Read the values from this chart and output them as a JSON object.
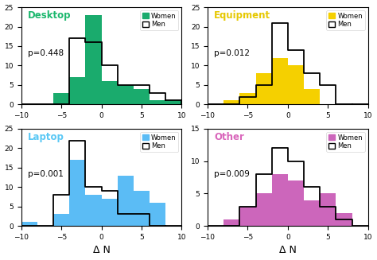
{
  "panels": [
    {
      "title": "Desktop",
      "title_color": "#1db86e",
      "p_value": "p=0.448",
      "color": "#1aab6d",
      "women_counts": [
        0,
        0,
        3,
        7,
        23,
        6,
        5,
        4,
        1,
        1
      ],
      "men_counts": [
        0,
        0,
        0,
        17,
        16,
        10,
        5,
        5,
        3,
        1
      ],
      "ylim": [
        0,
        25
      ],
      "yticks": [
        0,
        5,
        10,
        15,
        20,
        25
      ]
    },
    {
      "title": "Equipment",
      "title_color": "#e6c800",
      "p_value": "p=0.012",
      "color": "#f5d000",
      "women_counts": [
        0,
        1,
        3,
        8,
        12,
        10,
        4,
        0,
        0,
        0
      ],
      "men_counts": [
        0,
        0,
        2,
        5,
        21,
        14,
        8,
        5,
        0,
        0
      ],
      "ylim": [
        0,
        25
      ],
      "yticks": [
        0,
        5,
        10,
        15,
        20,
        25
      ]
    },
    {
      "title": "Laptop",
      "title_color": "#5bc8f5",
      "p_value": "p=0.001",
      "color": "#5bbcf5",
      "women_counts": [
        1,
        0,
        3,
        17,
        8,
        7,
        13,
        9,
        6,
        0
      ],
      "men_counts": [
        0,
        0,
        8,
        22,
        10,
        9,
        3,
        3,
        0,
        0
      ],
      "ylim": [
        0,
        25
      ],
      "yticks": [
        0,
        5,
        10,
        15,
        20,
        25
      ]
    },
    {
      "title": "Other",
      "title_color": "#d966bb",
      "p_value": "p=0.009",
      "color": "#cc66bb",
      "women_counts": [
        0,
        1,
        3,
        5,
        8,
        7,
        4,
        5,
        2,
        0
      ],
      "men_counts": [
        0,
        0,
        3,
        8,
        12,
        10,
        6,
        3,
        1,
        0
      ],
      "ylim": [
        0,
        15
      ],
      "yticks": [
        0,
        5,
        10,
        15
      ]
    }
  ],
  "bin_edges": [
    -10,
    -8,
    -6,
    -4,
    -2,
    0,
    2,
    4,
    6,
    8,
    10
  ],
  "xlabel": "Δ N",
  "xlim": [
    -10,
    10
  ],
  "xticks": [
    -10,
    -5,
    0,
    5,
    10
  ]
}
